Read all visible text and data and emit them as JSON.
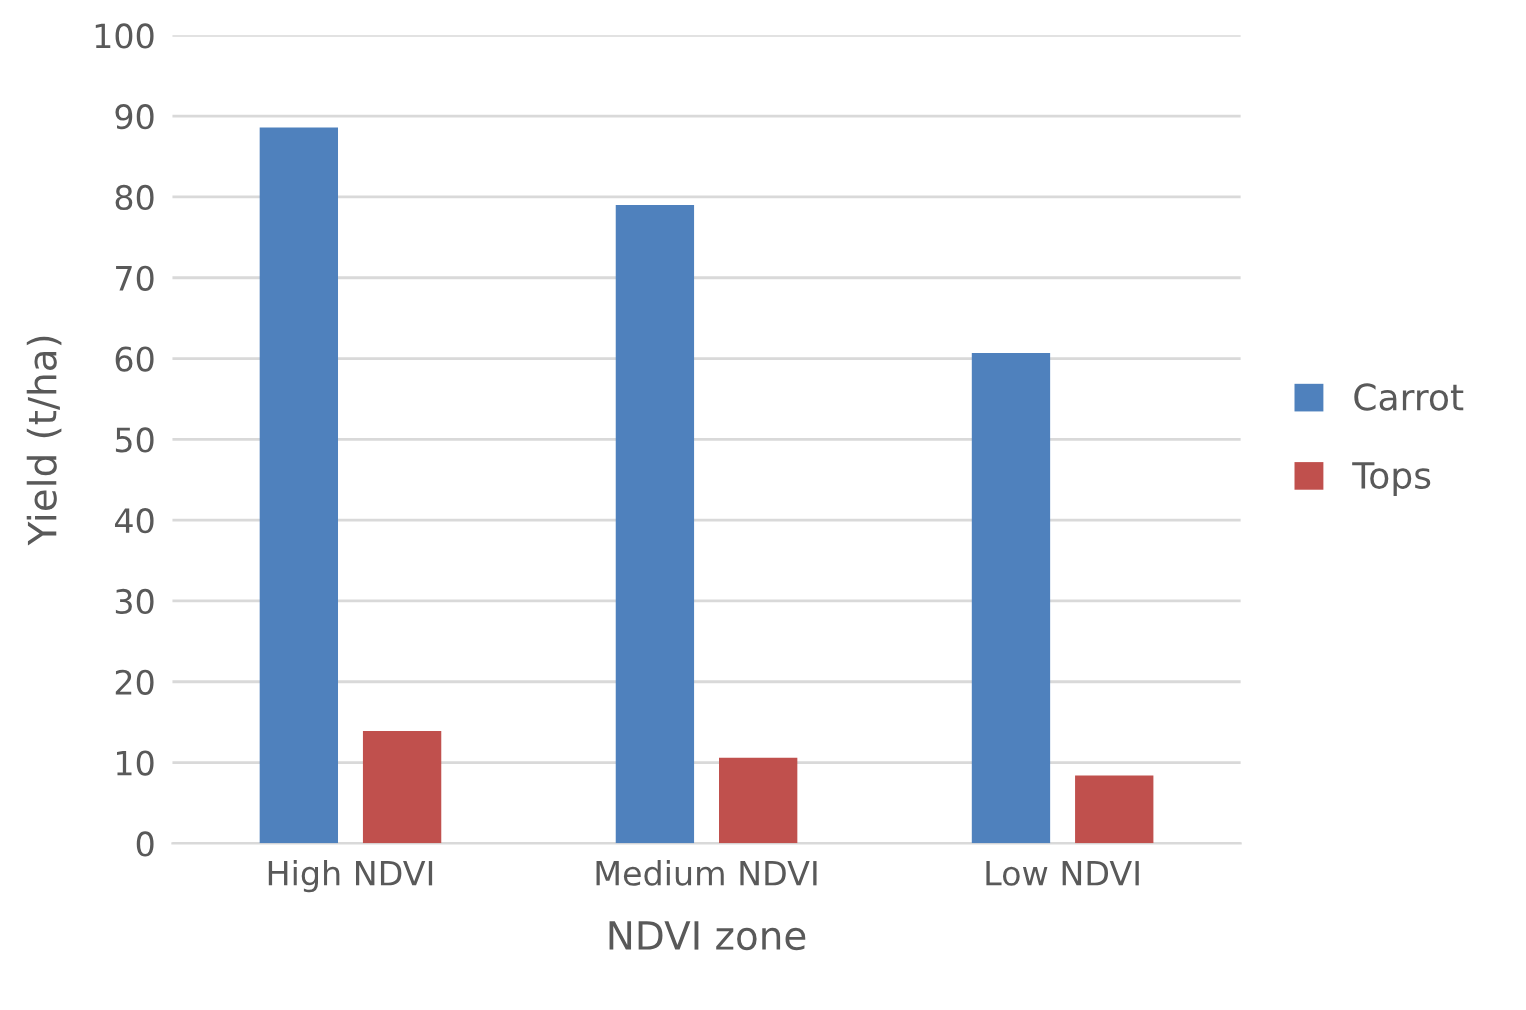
{
  "chart_data": {
    "type": "bar",
    "xlabel": "NDVI zone",
    "ylabel": "Yield (t/ha)",
    "categories": [
      "High NDVI",
      "Medium NDVI",
      "Low NDVI"
    ],
    "series": [
      {
        "name": "Carrot",
        "color": "#4f81bd",
        "values": [
          88.6,
          79.0,
          60.7
        ]
      },
      {
        "name": "Tops",
        "color": "#c0504d",
        "values": [
          13.9,
          10.6,
          8.4
        ]
      }
    ],
    "ylim": [
      0,
      100
    ],
    "yticks": [
      0,
      10,
      20,
      30,
      40,
      50,
      60,
      70,
      80,
      90,
      100
    ],
    "grid": "y",
    "legend": "right"
  }
}
